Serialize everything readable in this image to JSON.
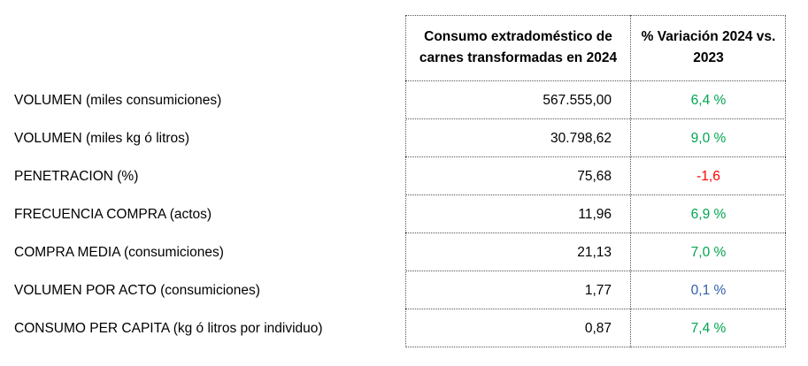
{
  "table": {
    "header": {
      "col_value": "Consumo extradoméstico de\ncarnes transformadas en 2024",
      "col_variation": "% Variación 2024 vs.\n2023"
    },
    "colors": {
      "positive": "#00a651",
      "negative": "#ff0000",
      "neutral": "#2e5fa8"
    },
    "rows": [
      {
        "label": "VOLUMEN (miles consumiciones)",
        "value": "567.555,00",
        "variation": "6,4 %",
        "tone": "positive"
      },
      {
        "label": "VOLUMEN (miles kg ó litros)",
        "value": "30.798,62",
        "variation": "9,0 %",
        "tone": "positive"
      },
      {
        "label": "PENETRACION (%)",
        "value": "75,68",
        "variation": "-1,6",
        "tone": "negative"
      },
      {
        "label": "FRECUENCIA COMPRA (actos)",
        "value": "11,96",
        "variation": "6,9 %",
        "tone": "positive"
      },
      {
        "label": "COMPRA MEDIA (consumiciones)",
        "value": "21,13",
        "variation": "7,0 %",
        "tone": "positive"
      },
      {
        "label": "VOLUMEN POR ACTO (consumiciones)",
        "value": "1,77",
        "variation": "0,1 %",
        "tone": "neutral"
      },
      {
        "label": "CONSUMO PER CAPITA (kg ó litros por individuo)",
        "value": "0,87",
        "variation": "7,4 %",
        "tone": "positive"
      }
    ]
  }
}
